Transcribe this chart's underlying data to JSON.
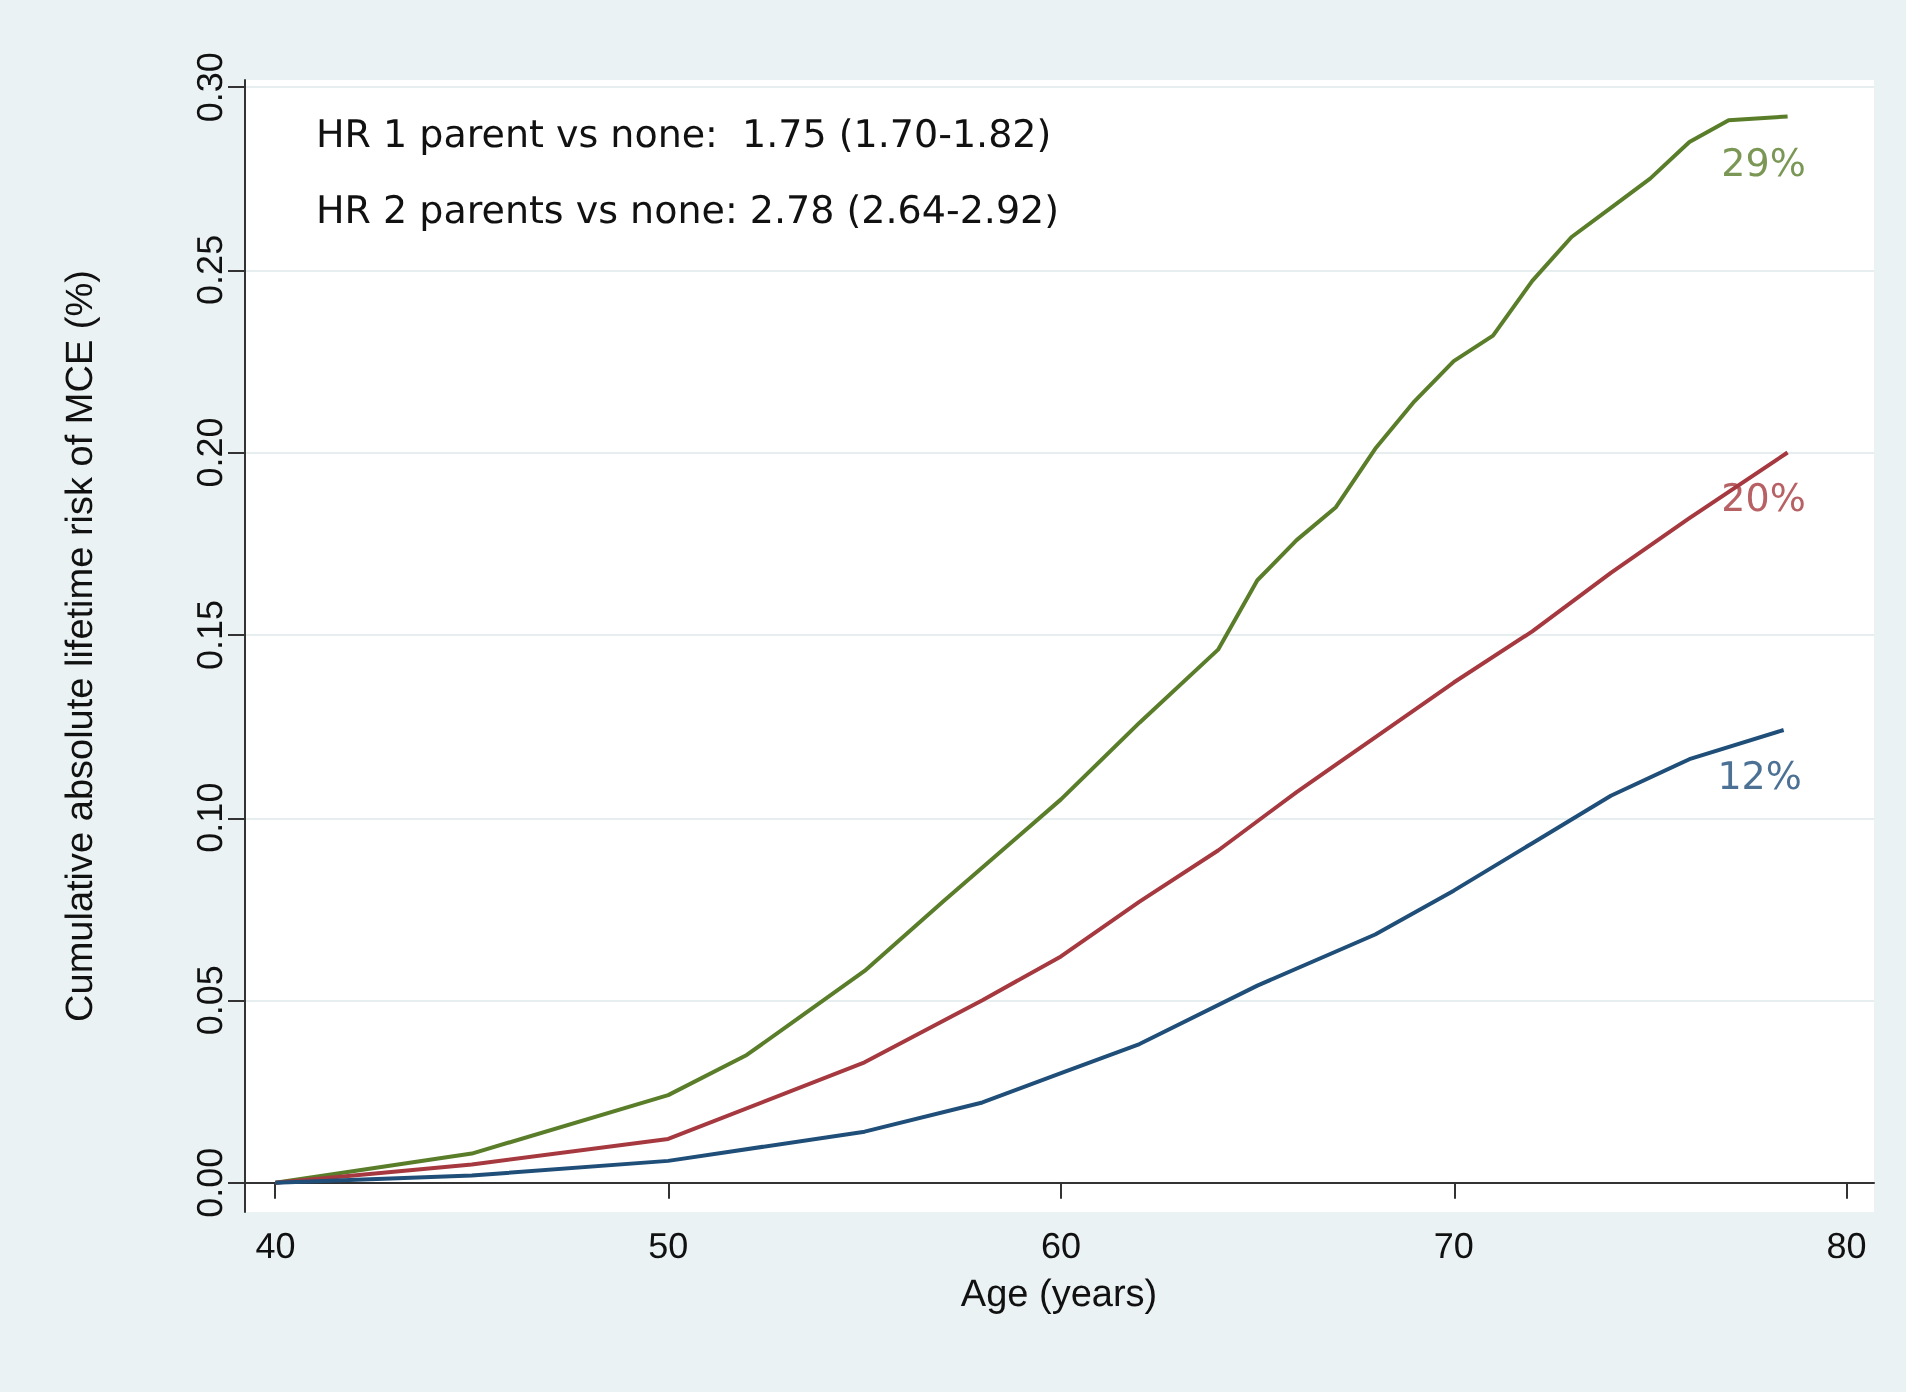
{
  "chart_data": {
    "type": "line",
    "xlabel": "Age (years)",
    "ylabel": "Cumulative absolute lifetime risk of MCE (%)",
    "xlim": [
      39.2,
      80.7
    ],
    "xticks": [
      40,
      50,
      60,
      70,
      80
    ],
    "ylim": [
      -0.008,
      0.302
    ],
    "yticks": [
      {
        "value": 0,
        "label": "0.00"
      },
      {
        "value": 0.05,
        "label": "0.05"
      },
      {
        "value": 0.1,
        "label": "0.10"
      },
      {
        "value": 0.15,
        "label": "0.15"
      },
      {
        "value": 0.2,
        "label": "0.20"
      },
      {
        "value": 0.25,
        "label": "0.25"
      },
      {
        "value": 0.3,
        "label": "0.30"
      }
    ],
    "grid": "y",
    "marker": "none",
    "line_style": "solid",
    "series": [
      {
        "color": "#5a7d2a",
        "x": [
          40,
          45,
          50,
          52,
          55,
          57,
          60,
          62,
          64,
          65,
          66,
          67,
          68,
          69,
          70,
          71,
          72,
          73,
          74,
          75,
          76,
          77,
          78.5
        ],
        "values": [
          0,
          0.008,
          0.024,
          0.035,
          0.058,
          0.077,
          0.105,
          0.126,
          0.146,
          0.165,
          0.176,
          0.185,
          0.201,
          0.214,
          0.225,
          0.232,
          0.247,
          0.259,
          0.267,
          0.275,
          0.285,
          0.291,
          0.292
        ]
      },
      {
        "color": "#a6393f",
        "x": [
          40,
          45,
          50,
          55,
          58,
          60,
          62,
          64,
          66,
          68,
          70,
          72,
          74,
          76,
          78.5
        ],
        "values": [
          0,
          0.005,
          0.012,
          0.033,
          0.05,
          0.062,
          0.077,
          0.091,
          0.107,
          0.122,
          0.137,
          0.151,
          0.167,
          0.182,
          0.2
        ]
      },
      {
        "color": "#1f4e79",
        "x": [
          40,
          45,
          50,
          55,
          58,
          60,
          62,
          65,
          68,
          70,
          72,
          74,
          76,
          78.4
        ],
        "values": [
          0,
          0.002,
          0.006,
          0.014,
          0.022,
          0.03,
          0.038,
          0.054,
          0.068,
          0.08,
          0.093,
          0.106,
          0.116,
          0.124
        ]
      }
    ],
    "annotations": [
      "HR 1 parent vs none:  1.75 (1.70-1.82)",
      "HR 2 parents vs none: 2.78 (2.64-2.92)",
      "29%",
      "20%",
      "12%"
    ]
  }
}
